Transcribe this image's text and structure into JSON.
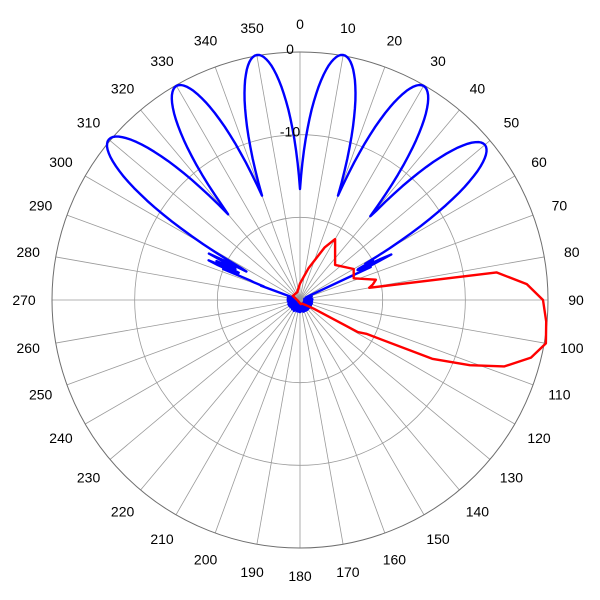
{
  "chart_data": {
    "type": "line",
    "subtype": "polar",
    "angle_unit": "degrees",
    "angle_direction": "clockwise",
    "angle_zero": "top",
    "angle_ticks": [
      "0",
      "10",
      "20",
      "30",
      "40",
      "50",
      "60",
      "70",
      "80",
      "90",
      "100",
      "110",
      "120",
      "130",
      "140",
      "150",
      "160",
      "170",
      "180",
      "190",
      "200",
      "210",
      "220",
      "230",
      "240",
      "250",
      "260",
      "270",
      "280",
      "290",
      "300",
      "310",
      "320",
      "330",
      "340",
      "350"
    ],
    "radial_range": [
      -30,
      0
    ],
    "radial_unit": "dB",
    "radial_ticks": [
      {
        "value": 0,
        "label": "0"
      },
      {
        "value": -10,
        "label": "-10"
      },
      {
        "value": -20,
        "label": ""
      }
    ],
    "grid": true,
    "legend": "none",
    "series": [
      {
        "color": "#0000ff",
        "lobes": [
          {
            "angle": -50,
            "peak_db": 0.2
          },
          {
            "angle": -30,
            "peak_db": -0.1
          },
          {
            "angle": -10,
            "peak_db": 0.1
          },
          {
            "angle": 10,
            "peak_db": 0.1
          },
          {
            "angle": 30,
            "peak_db": -0.1
          },
          {
            "angle": 50,
            "peak_db": -0.8
          }
        ],
        "lobe_halfwidth_deg": 6,
        "sidelobe_range_deg": [
          -70,
          65
        ],
        "sidelobe_level_db": -19
      },
      {
        "color": "#ff0000",
        "points": [
          [
            30,
            -21.5
          ],
          [
            45,
            -24
          ],
          [
            60,
            -22.5
          ],
          [
            68,
            -23
          ],
          [
            75,
            -20.5
          ],
          [
            78,
            -21
          ],
          [
            80,
            -21.5
          ],
          [
            82,
            -6
          ],
          [
            86,
            -2.5
          ],
          [
            90,
            -0.6
          ],
          [
            95,
            -0.1
          ],
          [
            100,
            0.2
          ],
          [
            104,
            -1.2
          ],
          [
            108,
            -4
          ],
          [
            111,
            -8
          ],
          [
            114,
            -12.5
          ],
          [
            117,
            -21
          ],
          [
            119,
            -22
          ],
          [
            122,
            -28
          ],
          [
            130,
            -29
          ],
          [
            150,
            -29.5
          ],
          [
            170,
            -29.5
          ],
          [
            200,
            -29.7
          ],
          [
            260,
            -29.7
          ],
          [
            300,
            -29
          ],
          [
            340,
            -29
          ],
          [
            360,
            -28
          ],
          [
            375,
            -26
          ],
          [
            385,
            -23
          ],
          [
            390,
            -21.5
          ]
        ]
      }
    ]
  }
}
